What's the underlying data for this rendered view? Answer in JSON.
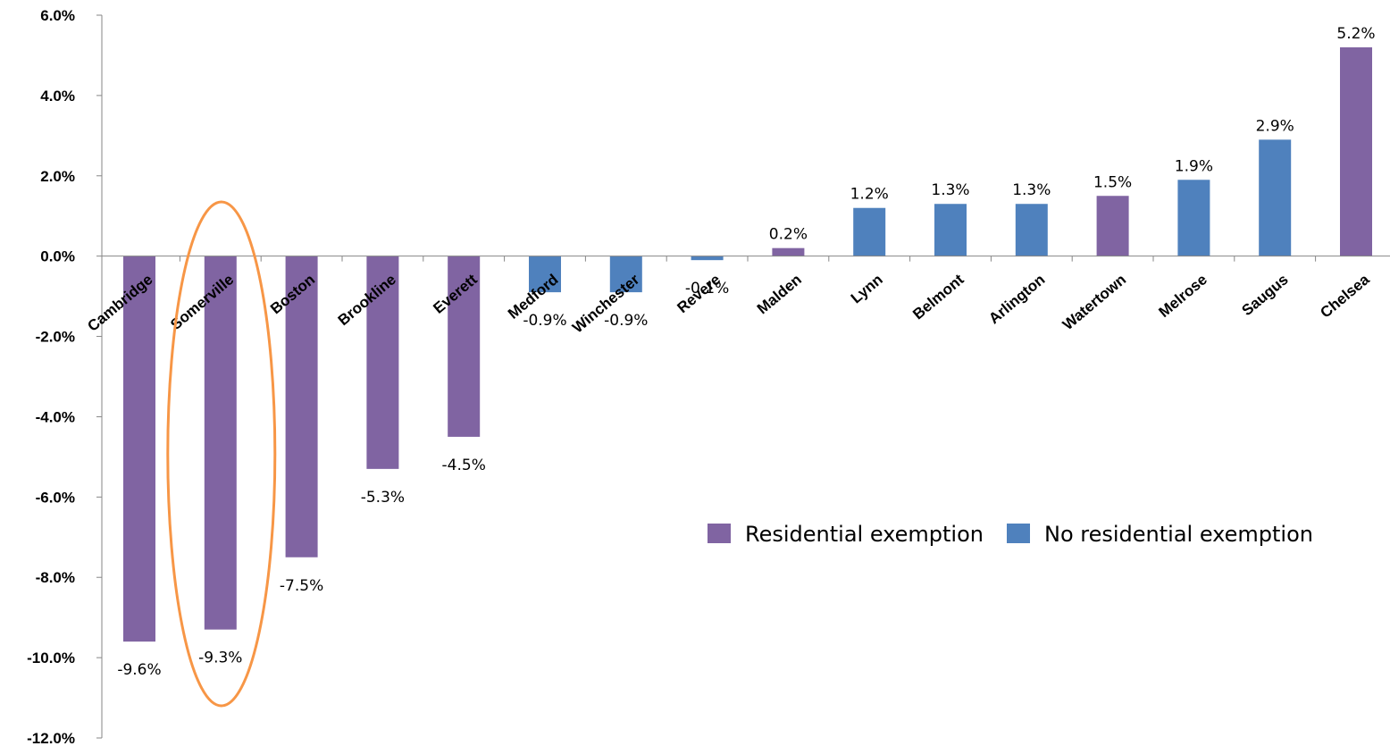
{
  "chart_data": {
    "type": "bar",
    "categories": [
      "Cambridge",
      "Somerville",
      "Boston",
      "Brookline",
      "Everett",
      "Medford",
      "Winchester",
      "Revere",
      "Malden",
      "Lynn",
      "Belmont",
      "Arlington",
      "Watertown",
      "Melrose",
      "Saugus",
      "Chelsea"
    ],
    "values": [
      -9.6,
      -9.3,
      -7.5,
      -5.3,
      -4.5,
      -0.9,
      -0.9,
      -0.1,
      0.2,
      1.2,
      1.3,
      1.3,
      1.5,
      1.9,
      2.9,
      5.2
    ],
    "data_labels": [
      "-9.6%",
      "-9.3%",
      "-7.5%",
      "-5.3%",
      "-4.5%",
      "-0.9%",
      "-0.9%",
      "-0.1%",
      "0.2%",
      "1.2%",
      "1.3%",
      "1.3%",
      "1.5%",
      "1.9%",
      "2.9%",
      "5.2%"
    ],
    "groups": [
      "residential",
      "residential",
      "residential",
      "residential",
      "residential",
      "none",
      "none",
      "none",
      "residential",
      "none",
      "none",
      "none",
      "residential",
      "none",
      "none",
      "residential"
    ],
    "series": [
      {
        "key": "residential",
        "name": "Residential exemption",
        "color": "#8064A2"
      },
      {
        "key": "none",
        "name": "No residential exemption",
        "color": "#4F81BD"
      }
    ],
    "ylim": [
      -12.0,
      6.0
    ],
    "yticks": [
      6.0,
      4.0,
      2.0,
      0.0,
      -2.0,
      -4.0,
      -6.0,
      -8.0,
      -10.0,
      -12.0
    ],
    "ytick_labels": [
      "6.0%",
      "4.0%",
      "2.0%",
      "0.0%",
      "-2.0%",
      "-4.0%",
      "-6.0%",
      "-8.0%",
      "-10.0%",
      "-12.0%"
    ],
    "title": "",
    "xlabel": "",
    "ylabel": "",
    "legend_position": "right-middle",
    "grid": false,
    "highlight": {
      "category": "Somerville",
      "shape": "ellipse",
      "color": "#F79646"
    }
  }
}
